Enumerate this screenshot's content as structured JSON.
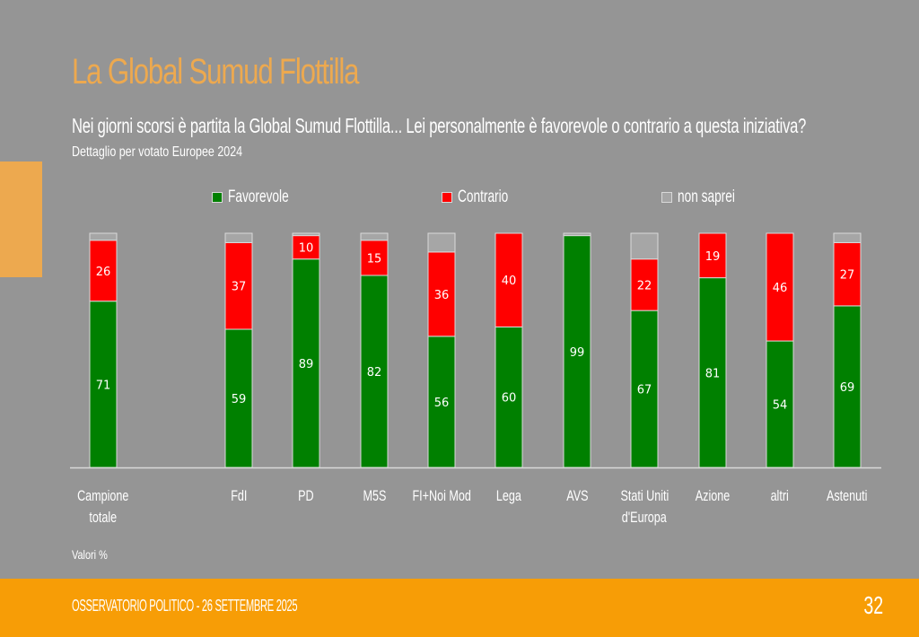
{
  "slide": {
    "title": "La Global Sumud Flottilla",
    "question": "Nei giorni scorsi è partita la Global Sumud Flottilla... Lei personalmente è favorevole o contrario a questa iniziativa?",
    "subtitle": "Dettaglio per votato Europee 2024",
    "note": "Valori %",
    "footer": "OSSERVATORIO POLITICO - 26 SETTEMBRE 2025",
    "page_number": "32",
    "accent_color": "#eda94f",
    "footer_color": "#f79d06"
  },
  "chart_data": {
    "type": "bar",
    "stacked": true,
    "title": "La Global Sumud Flottilla",
    "xlabel": "",
    "ylabel": "",
    "ylim": [
      0,
      100
    ],
    "grid": false,
    "legend_position": "top",
    "categories": [
      "Campione totale",
      "FdI",
      "PD",
      "M5S",
      "FI+Noi Mod",
      "Lega",
      "AVS",
      "Stati Uniti d'Europa",
      "Azione",
      "altri",
      "Astenuti"
    ],
    "category_lines": [
      [
        "Campione",
        "totale"
      ],
      [
        "FdI"
      ],
      [
        "PD"
      ],
      [
        "M5S"
      ],
      [
        "FI+Noi Mod"
      ],
      [
        "Lega"
      ],
      [
        "AVS"
      ],
      [
        "Stati Uniti",
        "d'Europa"
      ],
      [
        "Azione"
      ],
      [
        "altri"
      ],
      [
        "Astenuti"
      ]
    ],
    "series": [
      {
        "name": "Favorevole",
        "color": "#008000",
        "values": [
          71,
          59,
          89,
          82,
          56,
          60,
          99,
          67,
          81,
          54,
          69
        ],
        "labels_shown": true
      },
      {
        "name": "Contrario",
        "color": "#ff0000",
        "values": [
          26,
          37,
          10,
          15,
          36,
          40,
          0,
          22,
          19,
          46,
          27
        ],
        "labels_shown": true
      },
      {
        "name": "non saprei",
        "color": "#a6a6a6",
        "values": [
          3,
          4,
          1,
          3,
          8,
          0,
          1,
          11,
          0,
          0,
          4
        ],
        "labels_shown": false
      }
    ]
  }
}
